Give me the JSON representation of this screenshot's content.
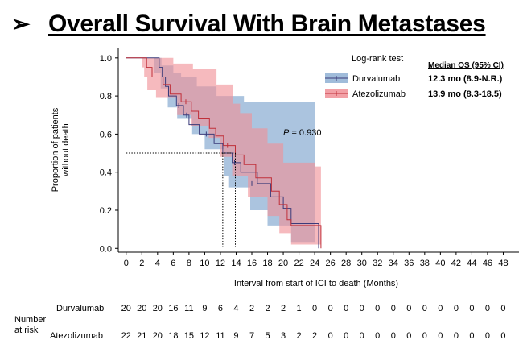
{
  "slide": {
    "bullet": "➢",
    "title": "Overall Survival With Brain Metastases"
  },
  "chart_data": {
    "type": "line",
    "subtype": "kaplan-meier",
    "title": "Overall Survival With Brain Metastases",
    "xlabel": "Interval from start of ICI to death (Months)",
    "ylabel_lines": [
      "Proportion of patients",
      "without death"
    ],
    "xlim": [
      -1,
      50
    ],
    "ylim": [
      -0.02,
      1.05
    ],
    "xticks": [
      0,
      2,
      4,
      6,
      8,
      10,
      12,
      14,
      16,
      18,
      20,
      22,
      24,
      26,
      28,
      30,
      32,
      34,
      36,
      38,
      40,
      42,
      44,
      46,
      48
    ],
    "yticks": [
      0.0,
      0.2,
      0.4,
      0.6,
      0.8,
      1.0
    ],
    "ytick_labels": [
      "0.0",
      "0.2",
      "0.4",
      "0.6",
      "0.8",
      "1.0"
    ],
    "grid": false,
    "legend": {
      "title": "Log-rank test",
      "position": "top-right",
      "stats_header": "Median OS (95% CI)"
    },
    "annotation": {
      "prefix": "P",
      "text": " = 0.930",
      "x": 20,
      "y": 0.61
    },
    "series": [
      {
        "name": "Durvalumab",
        "line_color": "#3b3b7a",
        "band_color": "#8fb0d4",
        "median_label": "12.3 mo (8.9-N.R.)",
        "median": 12.3,
        "steps": [
          [
            0,
            1.0
          ],
          [
            3.6,
            1.0
          ],
          [
            4.2,
            0.95
          ],
          [
            4.6,
            0.9
          ],
          [
            5.0,
            0.85
          ],
          [
            5.4,
            0.8
          ],
          [
            6.4,
            0.75
          ],
          [
            7.3,
            0.7
          ],
          [
            8.0,
            0.65
          ],
          [
            9.3,
            0.6
          ],
          [
            11.2,
            0.55
          ],
          [
            12.3,
            0.5
          ],
          [
            13.5,
            0.45
          ],
          [
            14.6,
            0.4
          ],
          [
            16.7,
            0.34
          ],
          [
            18.4,
            0.27
          ],
          [
            20.0,
            0.21
          ],
          [
            21.0,
            0.13
          ],
          [
            24.0,
            0.13
          ],
          [
            24.5,
            0.0
          ]
        ],
        "ci_upper": [
          [
            0,
            1.0
          ],
          [
            3.8,
            1.0
          ],
          [
            4.5,
            0.96
          ],
          [
            6.0,
            0.92
          ],
          [
            7.0,
            0.9
          ],
          [
            9.0,
            0.85
          ],
          [
            11.5,
            0.8
          ],
          [
            15.0,
            0.77
          ],
          [
            24.0,
            0.76
          ]
        ],
        "ci_lower": [
          [
            0,
            1.0
          ],
          [
            3.6,
            0.92
          ],
          [
            4.4,
            0.84
          ],
          [
            5.3,
            0.74
          ],
          [
            6.5,
            0.68
          ],
          [
            8.4,
            0.6
          ],
          [
            10.0,
            0.52
          ],
          [
            12.5,
            0.38
          ],
          [
            13.0,
            0.32
          ],
          [
            15.8,
            0.2
          ],
          [
            18.0,
            0.12
          ],
          [
            21.0,
            0.03
          ],
          [
            24.0,
            0.03
          ]
        ],
        "censored": [
          [
            6.7,
            0.75
          ],
          [
            7.7,
            0.7
          ],
          [
            10.2,
            0.6
          ],
          [
            13.8,
            0.45
          ],
          [
            16.0,
            0.34
          ]
        ]
      },
      {
        "name": "Atezolizumab",
        "line_color": "#c0303a",
        "band_color": "#f08f96",
        "median_label": "13.9 mo (8.3-18.5)",
        "median": 13.9,
        "steps": [
          [
            0,
            1.0
          ],
          [
            2.0,
            1.0
          ],
          [
            2.6,
            0.95
          ],
          [
            3.3,
            0.9
          ],
          [
            4.7,
            0.86
          ],
          [
            5.6,
            0.81
          ],
          [
            7.0,
            0.77
          ],
          [
            8.3,
            0.72
          ],
          [
            9.2,
            0.68
          ],
          [
            10.6,
            0.63
          ],
          [
            11.4,
            0.59
          ],
          [
            12.4,
            0.54
          ],
          [
            13.9,
            0.49
          ],
          [
            15.0,
            0.44
          ],
          [
            16.5,
            0.37
          ],
          [
            18.5,
            0.3
          ],
          [
            19.5,
            0.23
          ],
          [
            20.5,
            0.15
          ],
          [
            21.0,
            0.12
          ],
          [
            24.0,
            0.12
          ],
          [
            24.8,
            0.0
          ]
        ],
        "ci_upper": [
          [
            0,
            1.0
          ],
          [
            3.5,
            1.0
          ],
          [
            6.0,
            0.97
          ],
          [
            8.5,
            0.94
          ],
          [
            11.5,
            0.86
          ],
          [
            13.6,
            0.76
          ],
          [
            14.5,
            0.71
          ],
          [
            16.0,
            0.63
          ],
          [
            18.0,
            0.55
          ],
          [
            20.0,
            0.45
          ],
          [
            24.0,
            0.43
          ],
          [
            24.8,
            0.43
          ]
        ],
        "ci_lower": [
          [
            0,
            1.0
          ],
          [
            2.0,
            0.95
          ],
          [
            2.3,
            0.9
          ],
          [
            2.7,
            0.83
          ],
          [
            3.8,
            0.79
          ],
          [
            6.5,
            0.7
          ],
          [
            8.3,
            0.64
          ],
          [
            10.5,
            0.58
          ],
          [
            12.0,
            0.48
          ],
          [
            13.5,
            0.38
          ],
          [
            15.5,
            0.27
          ],
          [
            18.0,
            0.17
          ],
          [
            19.5,
            0.08
          ],
          [
            21.0,
            0.02
          ],
          [
            24.0,
            0.02
          ],
          [
            24.8,
            0.0
          ]
        ],
        "censored": [
          [
            7.6,
            0.77
          ],
          [
            12.9,
            0.54
          ]
        ]
      }
    ],
    "median_reference_y": 0.5
  },
  "risk_table": {
    "title_lines": [
      "Number",
      "at risk"
    ],
    "rows": [
      {
        "label": "Durvalumab",
        "values": [
          "20",
          "20",
          "20",
          "16",
          "11",
          "9",
          "6",
          "4",
          "2",
          "2",
          "2",
          "1",
          "0",
          "0",
          "0",
          "0",
          "0",
          "0",
          "0",
          "0",
          "0",
          "0",
          "0",
          "0",
          "0"
        ]
      },
      {
        "label": "Atezolizumab",
        "values": [
          "22",
          "21",
          "20",
          "18",
          "15",
          "12",
          "11",
          "9",
          "7",
          "5",
          "3",
          "2",
          "2",
          "0",
          "0",
          "0",
          "0",
          "0",
          "0",
          "0",
          "0",
          "0",
          "0",
          "0",
          "0"
        ]
      }
    ]
  }
}
